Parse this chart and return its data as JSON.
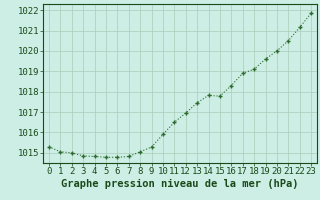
{
  "x": [
    0,
    1,
    2,
    3,
    4,
    5,
    6,
    7,
    8,
    9,
    10,
    11,
    12,
    13,
    14,
    15,
    16,
    17,
    18,
    19,
    20,
    21,
    22,
    23
  ],
  "y": [
    1015.3,
    1015.05,
    1015.0,
    1014.85,
    1014.82,
    1014.78,
    1014.78,
    1014.82,
    1015.05,
    1015.28,
    1015.9,
    1016.5,
    1016.95,
    1017.45,
    1017.82,
    1017.78,
    1018.3,
    1018.9,
    1019.1,
    1019.6,
    1020.0,
    1020.5,
    1021.15,
    1021.85
  ],
  "line_color": "#2d6a2d",
  "marker": "+",
  "marker_color": "#2d6a2d",
  "background_color": "#cceee4",
  "grid_color": "#aaccbb",
  "text_color": "#1a4a1a",
  "xlabel": "Graphe pression niveau de la mer (hPa)",
  "ylim_min": 1014.5,
  "ylim_max": 1022.3,
  "ytick_values": [
    1015,
    1016,
    1017,
    1018,
    1019,
    1020,
    1021,
    1022
  ],
  "xtick_values": [
    0,
    1,
    2,
    3,
    4,
    5,
    6,
    7,
    8,
    9,
    10,
    11,
    12,
    13,
    14,
    15,
    16,
    17,
    18,
    19,
    20,
    21,
    22,
    23
  ],
  "font_size_xlabel": 7.5,
  "font_size_ticks": 6.5,
  "linewidth": 0.8,
  "markersize": 3.5
}
